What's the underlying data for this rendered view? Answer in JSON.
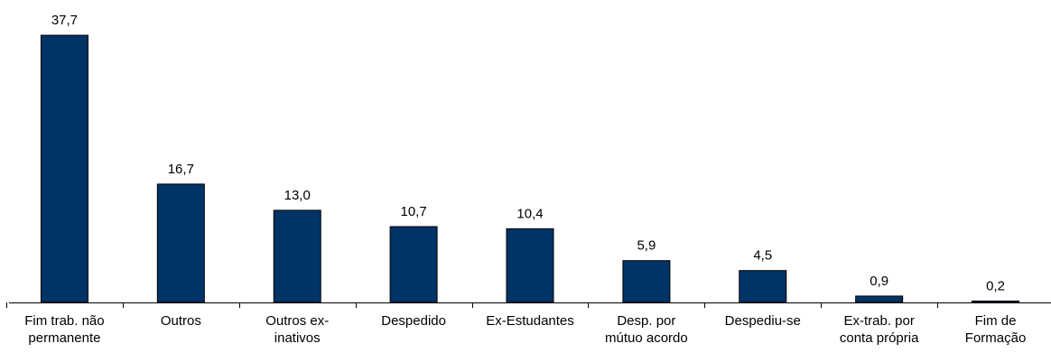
{
  "chart_data": {
    "type": "bar",
    "categories": [
      "Fim trab. não\npermanente",
      "Outros",
      "Outros ex-\ninativos",
      "Despedido",
      "Ex-Estudantes",
      "Desp. por\nmútuo acordo",
      "Despediu-se",
      "Ex-trab. por\nconta própria",
      "Fim de\nFormação"
    ],
    "values": [
      37.7,
      16.7,
      13.0,
      10.7,
      10.4,
      5.9,
      4.5,
      0.9,
      0.2
    ],
    "value_labels": [
      "37,7",
      "16,7",
      "13,0",
      "10,7",
      "10,4",
      "5,9",
      "4,5",
      "0,9",
      "0,2"
    ],
    "color": "#003366",
    "ylim": [
      0,
      40
    ]
  }
}
